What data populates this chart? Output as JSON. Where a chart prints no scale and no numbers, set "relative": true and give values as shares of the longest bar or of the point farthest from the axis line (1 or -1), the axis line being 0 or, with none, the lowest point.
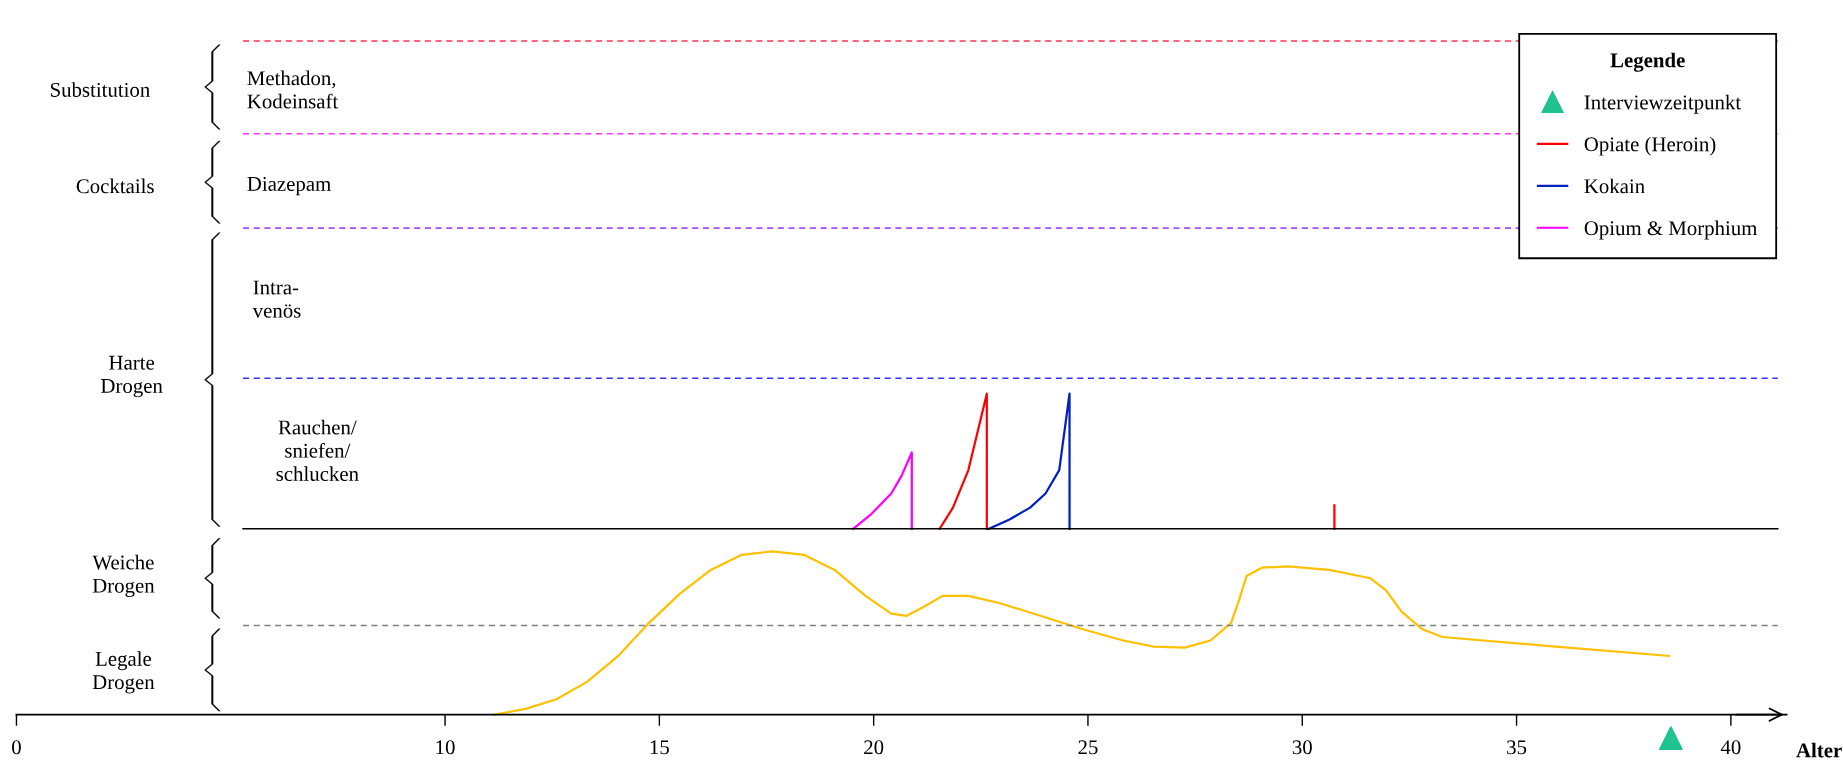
{
  "chart_data": {
    "type": "line",
    "relative": true,
    "xlabel": "Alter",
    "legend_title": "Legende",
    "legend": "top right",
    "tick_labels": "x",
    "xlim": [
      0,
      41.3
    ],
    "xticks": [
      0,
      10,
      15,
      20,
      25,
      30,
      35,
      40
    ],
    "series": [
      {
        "color": "#ffc000",
        "x": [
          11.15,
          11.88,
          12.6,
          13.32,
          14.04,
          14.76,
          15.48,
          16.2,
          16.92,
          17.64,
          18.37,
          19.09,
          19.81,
          20.41,
          20.77,
          21.13,
          21.61,
          22.21,
          22.93,
          23.89,
          24.86,
          25.82,
          26.54,
          27.26,
          27.86,
          28.34,
          28.53,
          28.7,
          29.06,
          29.66,
          30.63,
          31.59,
          31.95,
          32.31,
          32.79,
          33.27,
          35.91,
          38.56
        ],
        "values": [
          0,
          0.018,
          0.048,
          0.103,
          0.183,
          0.286,
          0.377,
          0.451,
          0.498,
          0.509,
          0.498,
          0.451,
          0.37,
          0.315,
          0.308,
          0.333,
          0.37,
          0.37,
          0.348,
          0.308,
          0.267,
          0.231,
          0.212,
          0.209,
          0.231,
          0.286,
          0.359,
          0.432,
          0.458,
          0.462,
          0.451,
          0.425,
          0.388,
          0.322,
          0.267,
          0.242,
          0.212,
          0.183
        ]
      },
      {
        "name": "Interviewzeitpunkt",
        "type": "scatter",
        "marker": "triangle",
        "color": "#1ec38f",
        "x": [
          38.6
        ],
        "values": [
          -0.073
        ]
      },
      {
        "name": "Opiate (Heroin)",
        "color": "#ff0000",
        "x": [
          21.54,
          21.85,
          22.21,
          22.64,
          22.64,
          null,
          30.75,
          30.75
        ],
        "values": [
          0.579,
          0.645,
          0.762,
          1,
          0.579,
          null,
          0.579,
          0.652
        ]
      },
      {
        "name": "Kokain",
        "color": "#0020c0",
        "x": [
          22.69,
          23.17,
          23.65,
          24.01,
          24.33,
          24.57,
          24.57
        ],
        "values": [
          0.579,
          0.608,
          0.645,
          0.689,
          0.762,
          1,
          0.579
        ]
      },
      {
        "name": "Opium & Morphium",
        "color": "#ff00ff",
        "x": [
          19.52,
          19.93,
          20.41,
          20.65,
          20.89,
          20.89
        ],
        "values": [
          0.579,
          0.623,
          0.689,
          0.744,
          0.817,
          0.579
        ]
      }
    ],
    "ref_lines": [
      {
        "axis": "y",
        "value": 2.099,
        "color": "#ff3355",
        "line_style": "dashed"
      },
      {
        "axis": "y",
        "value": 1.81,
        "color": "#ff33ff",
        "line_style": "dashed"
      },
      {
        "axis": "y",
        "value": 1.516,
        "color": "#a64dff",
        "line_style": "dashed"
      },
      {
        "axis": "y",
        "value": 1.048,
        "color": "#3333ff",
        "line_style": "dashed"
      },
      {
        "axis": "y",
        "value": 0.579,
        "color": "#000000",
        "line_style": "solid"
      },
      {
        "axis": "y",
        "value": 0.278,
        "color": "#808080",
        "line_style": "dashed"
      }
    ],
    "annotations": [
      "Substitution",
      "Cocktails",
      "Harte\nDrogen",
      "Weiche\nDrogen",
      "Legale\nDrogen",
      "Methadon,\nKodeinsaft",
      "Diazepam",
      "Intra-\nvenös",
      "Rauchen/\nsniefen/\nschlucken"
    ]
  }
}
